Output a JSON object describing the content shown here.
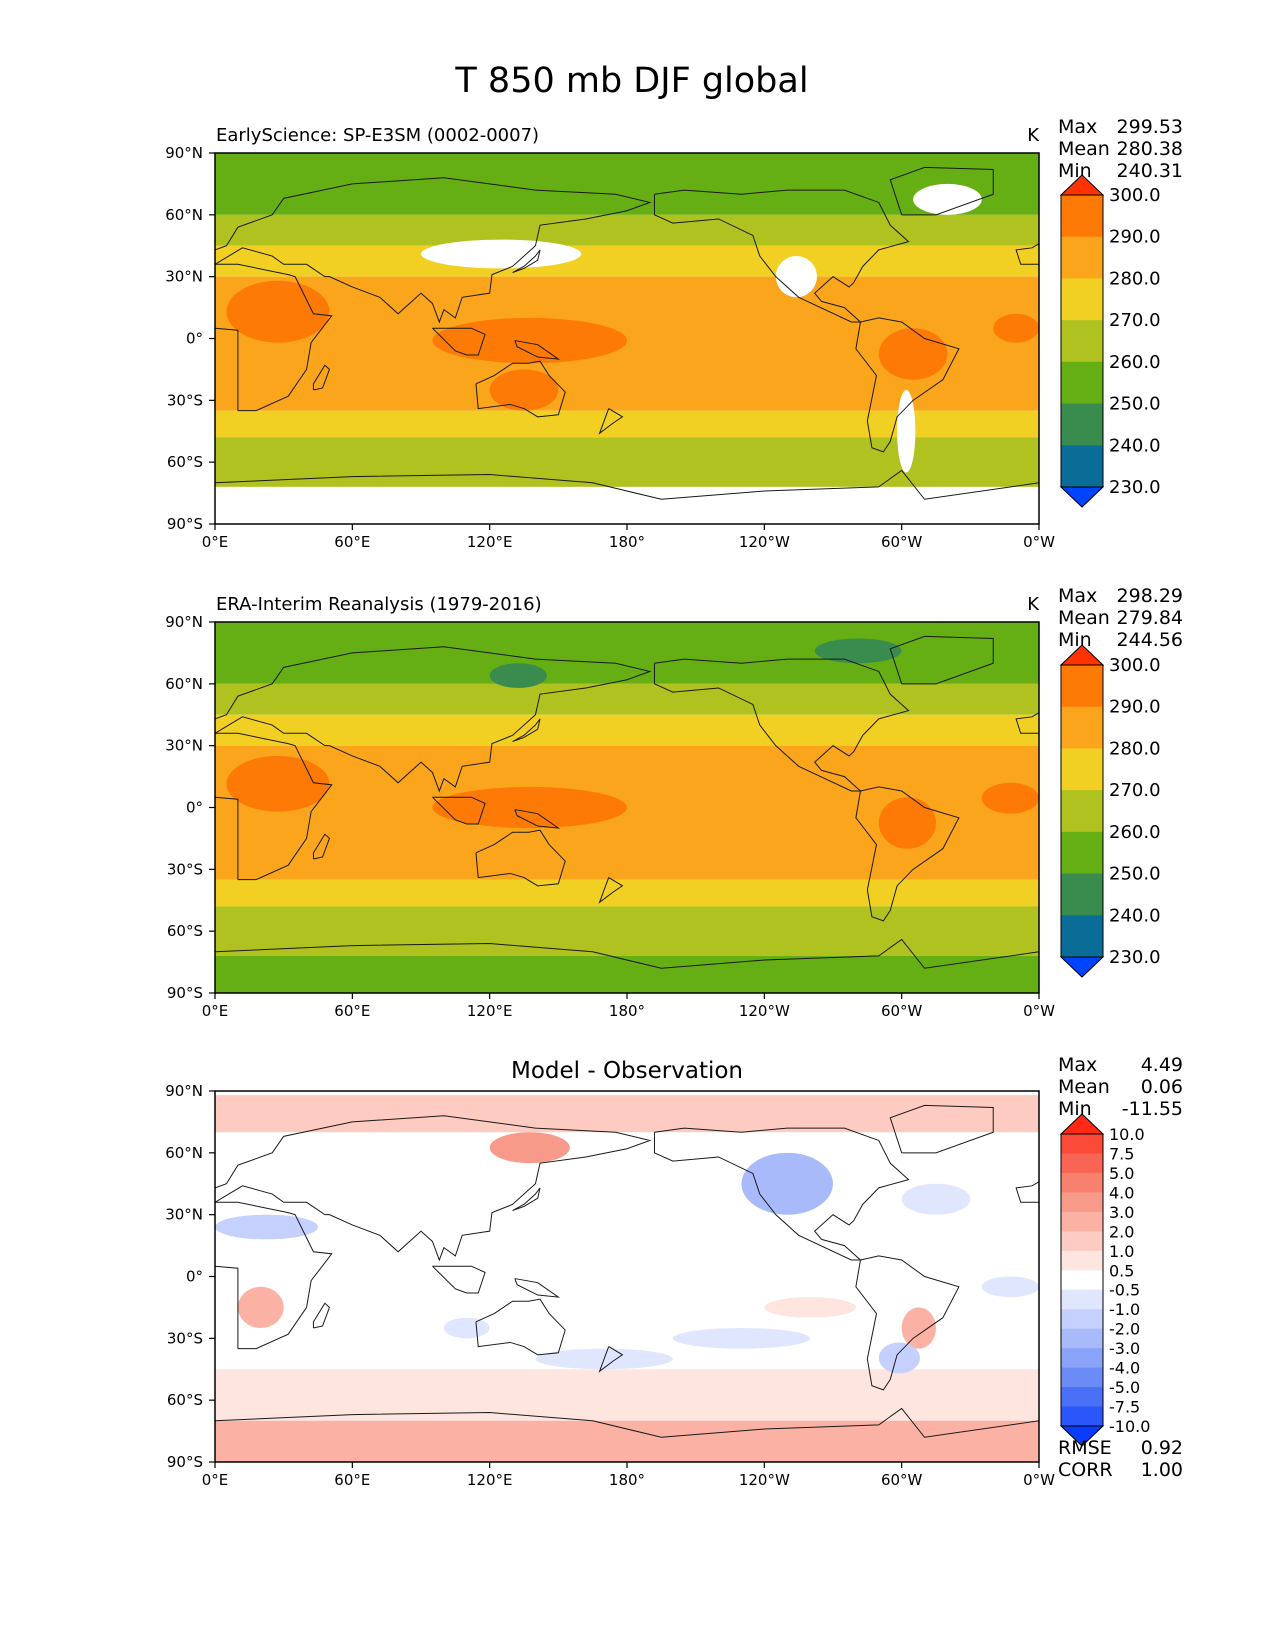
{
  "figure_title": "T 850 mb DJF global",
  "colors": {
    "land_outline": "#1a1a1a",
    "missing": "#ffffff",
    "frame": "#000000"
  },
  "chart_data": [
    {
      "type": "heatmap",
      "panel": "test",
      "title_left": "EarlyScience: SP-E3SM (0002-0007)",
      "title_right": "K",
      "stats": [
        {
          "label": "Max",
          "value": "299.53"
        },
        {
          "label": "Mean",
          "value": "280.38"
        },
        {
          "label": "Min",
          "value": "240.31"
        }
      ],
      "xticks": [
        "0°E",
        "60°E",
        "120°E",
        "180°",
        "120°W",
        "60°W",
        "0°W"
      ],
      "yticks": [
        "90°N",
        "60°N",
        "30°N",
        "0°",
        "30°S",
        "60°S",
        "90°S"
      ],
      "xlim": [
        0,
        360
      ],
      "ylim": [
        -90,
        90
      ],
      "colorbar": {
        "labels": [
          "300.0",
          "290.0",
          "280.0",
          "270.0",
          "260.0",
          "250.0",
          "240.0",
          "230.0"
        ],
        "colors": [
          "#ff3300",
          "#fd7a07",
          "#fba51c",
          "#f2cf23",
          "#afc21f",
          "#65ae13",
          "#3a8c4e",
          "#096d98",
          "#0044ff"
        ]
      },
      "bands": [
        {
          "lat": [
            60,
            90
          ],
          "color": "#65ae13"
        },
        {
          "lat": [
            45,
            60
          ],
          "color": "#afc21f"
        },
        {
          "lat": [
            30,
            45
          ],
          "color": "#f2cf23"
        },
        {
          "lat": [
            -35,
            30
          ],
          "color": "#fba51c"
        },
        {
          "lat": [
            -48,
            -35
          ],
          "color": "#f2cf23"
        },
        {
          "lat": [
            -72,
            -48
          ],
          "color": "#afc21f"
        },
        {
          "lat": [
            -90,
            -72
          ],
          "color": "#ffffff"
        }
      ],
      "patches": [
        {
          "lon": 5,
          "lat": 28,
          "w": 45,
          "h": 30,
          "color": "#fd7a07"
        },
        {
          "lon": 95,
          "lat": 10,
          "w": 85,
          "h": 22,
          "color": "#fd7a07"
        },
        {
          "lon": 120,
          "lat": -15,
          "w": 30,
          "h": 20,
          "color": "#fd7a07"
        },
        {
          "lon": 290,
          "lat": 5,
          "w": 30,
          "h": 25,
          "color": "#fd7a07"
        },
        {
          "lon": 340,
          "lat": 12,
          "w": 20,
          "h": 14,
          "color": "#fd7a07"
        },
        {
          "lon": 90,
          "lat": 48,
          "w": 70,
          "h": 14,
          "color": "#ffffff"
        },
        {
          "lon": 245,
          "lat": 40,
          "w": 18,
          "h": 20,
          "color": "#ffffff"
        },
        {
          "lon": 298,
          "lat": -25,
          "w": 8,
          "h": 40,
          "color": "#ffffff"
        },
        {
          "lon": 305,
          "lat": 75,
          "w": 30,
          "h": 15,
          "color": "#ffffff"
        }
      ]
    },
    {
      "type": "heatmap",
      "panel": "reference",
      "title_left": "ERA-Interim Reanalysis (1979-2016)",
      "title_right": "K",
      "stats": [
        {
          "label": "Max",
          "value": "298.29"
        },
        {
          "label": "Mean",
          "value": "279.84"
        },
        {
          "label": "Min",
          "value": "244.56"
        }
      ],
      "xticks": [
        "0°E",
        "60°E",
        "120°E",
        "180°",
        "120°W",
        "60°W",
        "0°W"
      ],
      "yticks": [
        "90°N",
        "60°N",
        "30°N",
        "0°",
        "30°S",
        "60°S",
        "90°S"
      ],
      "xlim": [
        0,
        360
      ],
      "ylim": [
        -90,
        90
      ],
      "colorbar": {
        "labels": [
          "300.0",
          "290.0",
          "280.0",
          "270.0",
          "260.0",
          "250.0",
          "240.0",
          "230.0"
        ],
        "colors": [
          "#ff3300",
          "#fd7a07",
          "#fba51c",
          "#f2cf23",
          "#afc21f",
          "#65ae13",
          "#3a8c4e",
          "#096d98",
          "#0044ff"
        ]
      },
      "bands": [
        {
          "lat": [
            60,
            90
          ],
          "color": "#65ae13"
        },
        {
          "lat": [
            45,
            60
          ],
          "color": "#afc21f"
        },
        {
          "lat": [
            30,
            45
          ],
          "color": "#f2cf23"
        },
        {
          "lat": [
            -35,
            30
          ],
          "color": "#fba51c"
        },
        {
          "lat": [
            -48,
            -35
          ],
          "color": "#f2cf23"
        },
        {
          "lat": [
            -72,
            -48
          ],
          "color": "#afc21f"
        },
        {
          "lat": [
            -90,
            -72
          ],
          "color": "#65ae13"
        }
      ],
      "patches": [
        {
          "lon": 5,
          "lat": 25,
          "w": 45,
          "h": 27,
          "color": "#fd7a07"
        },
        {
          "lon": 95,
          "lat": 10,
          "w": 85,
          "h": 20,
          "color": "#fd7a07"
        },
        {
          "lon": 290,
          "lat": 5,
          "w": 25,
          "h": 25,
          "color": "#fd7a07"
        },
        {
          "lon": 335,
          "lat": 12,
          "w": 25,
          "h": 15,
          "color": "#fd7a07"
        },
        {
          "lon": 120,
          "lat": 70,
          "w": 25,
          "h": 12,
          "color": "#3a8c4e"
        },
        {
          "lon": 262,
          "lat": 82,
          "w": 38,
          "h": 12,
          "color": "#3a8c4e"
        }
      ]
    },
    {
      "type": "heatmap",
      "panel": "difference",
      "title_center": "Model - Observation",
      "stats": [
        {
          "label": "Max",
          "value": "4.49"
        },
        {
          "label": "Mean",
          "value": "0.06"
        },
        {
          "label": "Min",
          "value": "-11.55"
        }
      ],
      "metrics": [
        {
          "label": "RMSE",
          "value": "0.92"
        },
        {
          "label": "CORR",
          "value": "1.00"
        }
      ],
      "xticks": [
        "0°E",
        "60°E",
        "120°E",
        "180°",
        "120°W",
        "60°W",
        "0°W"
      ],
      "yticks": [
        "90°N",
        "60°N",
        "30°N",
        "0°",
        "30°S",
        "60°S",
        "90°S"
      ],
      "xlim": [
        0,
        360
      ],
      "ylim": [
        -90,
        90
      ],
      "colorbar": {
        "labels": [
          "10.0",
          "7.5",
          "5.0",
          "4.0",
          "3.0",
          "2.0",
          "1.0",
          "0.5",
          "-0.5",
          "-1.0",
          "-2.0",
          "-3.0",
          "-4.0",
          "-5.0",
          "-7.5",
          "-10.0"
        ],
        "colors": [
          "#ff2a16",
          "#fb4a37",
          "#f96555",
          "#f7806f",
          "#f89a8a",
          "#fbb2a5",
          "#fdcbc2",
          "#fee5e0",
          "#ffffff",
          "#e0e6fe",
          "#c5d1fc",
          "#a8bafa",
          "#8aa3f8",
          "#6b8bf7",
          "#4a70f8",
          "#2a56fa",
          "#0a3cff"
        ]
      },
      "bands": [
        {
          "lat": [
            -90,
            90
          ],
          "color": "#ffffff"
        },
        {
          "lat": [
            70,
            88
          ],
          "color": "#fdcbc2"
        },
        {
          "lat": [
            -70,
            -45
          ],
          "color": "#fee5e0"
        },
        {
          "lat": [
            -90,
            -70
          ],
          "color": "#fbb2a5"
        }
      ],
      "patches": [
        {
          "lon": 120,
          "lat": 70,
          "w": 35,
          "h": 15,
          "color": "#f89a8a"
        },
        {
          "lon": 230,
          "lat": 60,
          "w": 40,
          "h": 30,
          "color": "#a8bafa"
        },
        {
          "lon": 0,
          "lat": 30,
          "w": 45,
          "h": 12,
          "color": "#c5d1fc"
        },
        {
          "lon": 300,
          "lat": 45,
          "w": 30,
          "h": 15,
          "color": "#e0e6fe"
        },
        {
          "lon": 335,
          "lat": 0,
          "w": 25,
          "h": 10,
          "color": "#e0e6fe"
        },
        {
          "lon": 10,
          "lat": -5,
          "w": 20,
          "h": 20,
          "color": "#fbb2a5"
        },
        {
          "lon": 300,
          "lat": -15,
          "w": 15,
          "h": 20,
          "color": "#fbb2a5"
        },
        {
          "lon": 100,
          "lat": -20,
          "w": 20,
          "h": 10,
          "color": "#e0e6fe"
        },
        {
          "lon": 140,
          "lat": -35,
          "w": 60,
          "h": 10,
          "color": "#e0e6fe"
        },
        {
          "lon": 200,
          "lat": -25,
          "w": 60,
          "h": 10,
          "color": "#e0e6fe"
        },
        {
          "lon": 240,
          "lat": -10,
          "w": 40,
          "h": 10,
          "color": "#fee5e0"
        },
        {
          "lon": 290,
          "lat": -32,
          "w": 18,
          "h": 15,
          "color": "#c5d1fc"
        }
      ]
    }
  ]
}
